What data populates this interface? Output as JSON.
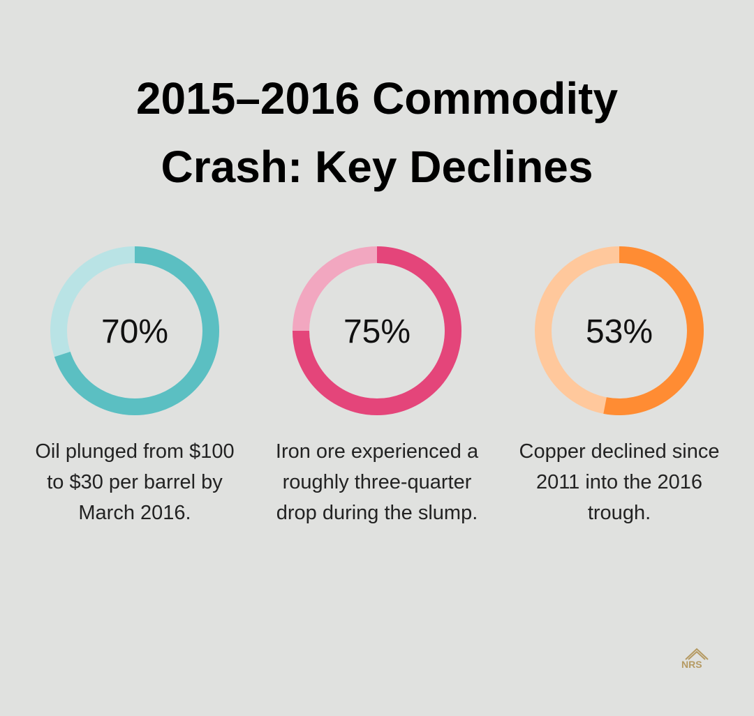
{
  "title": "2015–2016 Commodity Crash: Key Declines",
  "chart_data": [
    {
      "type": "donut",
      "values": [
        70
      ],
      "value_labels": [
        "70%"
      ],
      "color": "#5bbfc2",
      "track_color": "#b9e3e5",
      "description": "Oil plunged from $100 to $30 per barrel by March 2016."
    },
    {
      "type": "donut",
      "values": [
        75
      ],
      "value_labels": [
        "75%"
      ],
      "color": "#e4457a",
      "track_color": "#f2a7c0",
      "description": "Iron ore experienced a roughly three-quarter drop during the slump."
    },
    {
      "type": "donut",
      "values": [
        53
      ],
      "value_labels": [
        "53%"
      ],
      "color": "#ff8c33",
      "track_color": "#ffc89c",
      "description": "Copper declined since 2011 into the 2016 trough."
    }
  ],
  "logo": "NRS"
}
